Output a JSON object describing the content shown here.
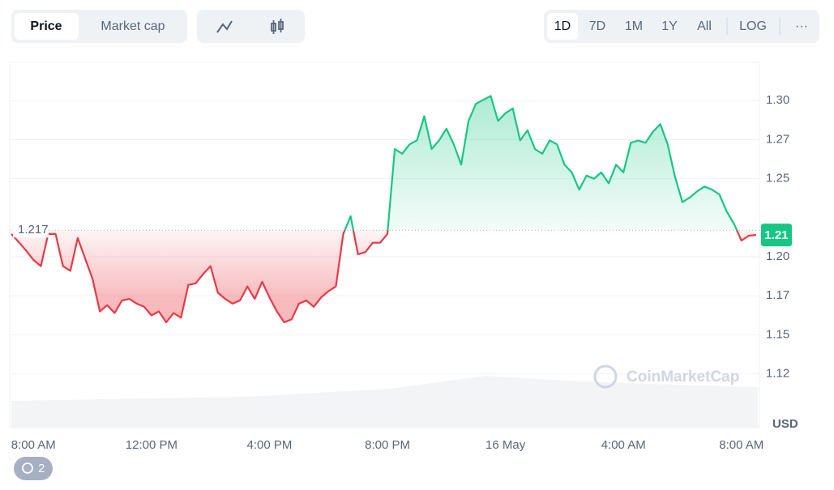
{
  "toolbar": {
    "tabs": [
      "Price",
      "Market cap"
    ],
    "ranges": [
      "1D",
      "7D",
      "1M",
      "1Y",
      "All"
    ],
    "log": "LOG",
    "more": "···"
  },
  "watermark": "CoinMarketCap",
  "history_badge": "2",
  "chart_data": {
    "type": "line",
    "y_label": "USD",
    "categories": [
      null,
      null,
      null,
      "8:00 AM",
      null,
      null,
      null,
      null,
      null,
      null,
      null,
      null,
      null,
      null,
      null,
      null,
      null,
      null,
      null,
      "12:00 PM",
      null,
      null,
      null,
      null,
      null,
      null,
      null,
      null,
      null,
      null,
      null,
      null,
      null,
      null,
      null,
      "4:00 PM",
      null,
      null,
      null,
      null,
      null,
      null,
      null,
      null,
      null,
      null,
      null,
      null,
      null,
      null,
      null,
      "8:00 PM",
      null,
      null,
      null,
      null,
      null,
      null,
      null,
      null,
      null,
      null,
      null,
      null,
      null,
      null,
      null,
      "16 May",
      null,
      null,
      null,
      null,
      null,
      null,
      null,
      null,
      null,
      null,
      null,
      null,
      null,
      null,
      null,
      "4:00 AM",
      null,
      null,
      null,
      null,
      null,
      null,
      null,
      null,
      null,
      null,
      null,
      null,
      null,
      null,
      null,
      "8:00 AM",
      null,
      null
    ],
    "values": [
      1.2146,
      1.2094,
      1.204,
      1.198,
      1.194,
      1.2146,
      1.2146,
      1.194,
      1.191,
      1.212,
      1.199,
      1.186,
      1.165,
      1.169,
      1.164,
      1.172,
      1.173,
      1.17,
      1.168,
      1.1625,
      1.165,
      1.158,
      1.164,
      1.161,
      1.182,
      1.183,
      1.189,
      1.194,
      1.177,
      1.173,
      1.17,
      1.172,
      1.181,
      1.173,
      1.184,
      1.174,
      1.165,
      1.158,
      1.16,
      1.17,
      1.172,
      1.168,
      1.174,
      1.178,
      1.181,
      1.2146,
      1.226,
      1.2016,
      1.203,
      1.209,
      1.209,
      1.2146,
      1.269,
      1.266,
      1.272,
      1.2745,
      1.29,
      1.269,
      1.2745,
      1.282,
      1.272,
      1.259,
      1.287,
      1.298,
      1.3005,
      1.303,
      1.287,
      1.292,
      1.295,
      1.2745,
      1.281,
      1.269,
      1.266,
      1.2745,
      1.272,
      1.259,
      1.254,
      1.243,
      1.252,
      1.25,
      1.254,
      1.247,
      1.259,
      1.254,
      1.273,
      1.2745,
      1.273,
      1.28,
      1.285,
      1.272,
      1.251,
      1.235,
      1.238,
      1.242,
      1.245,
      1.243,
      1.24,
      1.229,
      1.221,
      1.2104,
      1.2135,
      1.214
    ],
    "open_price": 1.217,
    "current_price": 1.21,
    "up_color": "#16c784",
    "down_color": "#ea3943",
    "ylim": [
      1.0906,
      1.3245
    ],
    "yticks": [
      {
        "value": 1.3,
        "label": "1.30"
      },
      {
        "value": 1.275,
        "label": "1.27"
      },
      1.25,
      {
        "value": 1.2,
        "label": "1.20"
      },
      {
        "value": 1.175,
        "label": "1.17"
      },
      1.15,
      {
        "value": 1.125,
        "label": "1.12"
      }
    ],
    "grid": true
  }
}
